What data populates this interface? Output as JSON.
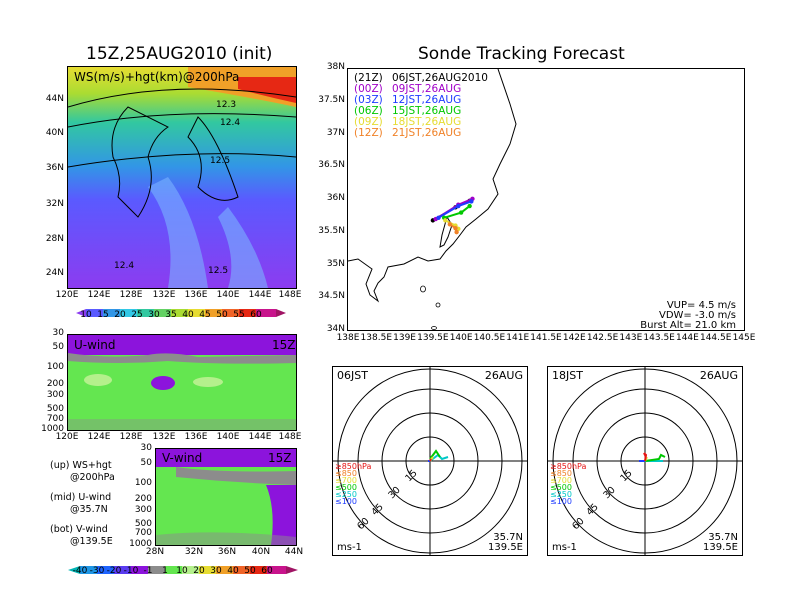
{
  "left_title": "15Z,25AUG2010 (init)",
  "right_title": "Sonde Tracking Forecast",
  "colors": {
    "purple": "#a000c8",
    "blue": "#1e3cff",
    "green": "#00c800",
    "yellow": "#e6dc32",
    "orange": "#f08228",
    "red": "#e61414",
    "cyan": "#00c8c8"
  },
  "top_map": {
    "label": "WS(m/s)+hgt(km)@200hPa",
    "y_ticks": [
      "44N",
      "40N",
      "36N",
      "32N",
      "28N",
      "24N"
    ],
    "x_ticks": [
      "120E",
      "124E",
      "128E",
      "132E",
      "136E",
      "140E",
      "144E",
      "148E"
    ],
    "contour_labels": [
      "12.3",
      "12.4",
      "12.5",
      "12.4",
      "12.5"
    ],
    "colorbar": [
      "10",
      "15",
      "20",
      "25",
      "30",
      "35",
      "40",
      "45",
      "50",
      "55",
      "60"
    ]
  },
  "u_panel": {
    "label": "U-wind",
    "time": "15Z",
    "y_ticks": [
      "30",
      "50",
      "100",
      "200",
      "300",
      "500",
      "700",
      "1000"
    ],
    "x_ticks": [
      "120E",
      "124E",
      "128E",
      "132E",
      "136E",
      "140E",
      "144E",
      "148E"
    ]
  },
  "v_panel": {
    "label": "V-wind",
    "time": "15Z",
    "y_ticks": [
      "30",
      "50",
      "100",
      "200",
      "300",
      "500",
      "700",
      "1000"
    ],
    "x_ticks": [
      "28N",
      "32N",
      "36N",
      "40N",
      "44N"
    ],
    "colorbar": [
      "-40",
      "-30",
      "-20",
      "-10",
      "-1",
      "1",
      "10",
      "20",
      "30",
      "40",
      "50",
      "60"
    ]
  },
  "notes": [
    {
      "head": "(up) WS+hgt",
      "sub": "@200hPa"
    },
    {
      "head": "(mid) U-wind",
      "sub": "@35.7N"
    },
    {
      "head": "(bot) V-wind",
      "sub": "@139.5E"
    }
  ],
  "chart_data": {
    "type": "scatter",
    "xlim": [
      138,
      145
    ],
    "ylim": [
      34,
      38
    ],
    "y_ticks": [
      "38N",
      "37.5N",
      "37N",
      "36.5N",
      "36N",
      "35.5N",
      "35N",
      "34.5N",
      "34N"
    ],
    "x_ticks": [
      "138E",
      "138.5E",
      "139E",
      "139.5E",
      "140E",
      "140.5E",
      "141E",
      "141.5E",
      "142E",
      "142.5E",
      "143E",
      "143.5E",
      "144E",
      "144.5E",
      "145E"
    ],
    "legend": [
      {
        "utc": "(21Z)",
        "jst": "06JST,26AUG2010",
        "color": "#000000"
      },
      {
        "utc": "(00Z)",
        "jst": "09JST,26AUG",
        "color": "#a000c8"
      },
      {
        "utc": "(03Z)",
        "jst": "12JST,26AUG",
        "color": "#1e3cff"
      },
      {
        "utc": "(06Z)",
        "jst": "15JST,26AUG",
        "color": "#00c800"
      },
      {
        "utc": "(09Z)",
        "jst": "18JST,26AUG",
        "color": "#e6dc32"
      },
      {
        "utc": "(12Z)",
        "jst": "21JST,26AUG",
        "color": "#f08228"
      }
    ],
    "series": [
      {
        "color": "#000000",
        "points": [
          [
            139.5,
            35.68
          ],
          [
            139.9,
            35.88
          ],
          [
            140.15,
            35.98
          ]
        ]
      },
      {
        "color": "#a000c8",
        "points": [
          [
            139.55,
            35.7
          ],
          [
            139.95,
            35.92
          ],
          [
            140.2,
            36.01
          ]
        ]
      },
      {
        "color": "#1e3cff",
        "points": [
          [
            139.6,
            35.72
          ],
          [
            139.95,
            35.9
          ],
          [
            140.18,
            35.97
          ]
        ]
      },
      {
        "color": "#00c800",
        "points": [
          [
            139.7,
            35.72
          ],
          [
            140.0,
            35.8
          ],
          [
            140.15,
            35.9
          ]
        ]
      },
      {
        "color": "#e6dc32",
        "points": [
          [
            139.72,
            35.68
          ],
          [
            139.9,
            35.6
          ],
          [
            139.95,
            35.55
          ]
        ]
      },
      {
        "color": "#f08228",
        "points": [
          [
            139.8,
            35.62
          ],
          [
            139.9,
            35.56
          ],
          [
            139.92,
            35.5
          ]
        ]
      }
    ],
    "info": {
      "vup": "VUP= 4.5 m/s",
      "vdw": "VDW= -3.0 m/s",
      "burst": "Burst Alt= 21.0 km"
    }
  },
  "polar_left": {
    "time": "06JST",
    "date": "26AUG",
    "ring_labels": [
      "15",
      "30",
      "45",
      "60"
    ],
    "levels": [
      {
        "text": "≥850hPa",
        "color": "#e61414"
      },
      {
        "text": "≤850",
        "color": "#f08228"
      },
      {
        "text": "≤700",
        "color": "#e6dc32"
      },
      {
        "text": "≤500",
        "color": "#00c800"
      },
      {
        "text": "≤250",
        "color": "#00c8c8"
      },
      {
        "text": "≤100",
        "color": "#1e3cff"
      }
    ],
    "unit": "ms-1",
    "lat": "35.7N",
    "lon": "139.5E"
  },
  "polar_right": {
    "time": "18JST",
    "date": "26AUG",
    "ring_labels": [
      "15",
      "30",
      "45",
      "60"
    ],
    "levels": [
      {
        "text": "≥850hPa",
        "color": "#e61414"
      },
      {
        "text": "≤850",
        "color": "#f08228"
      },
      {
        "text": "≤700",
        "color": "#e6dc32"
      },
      {
        "text": "≤500",
        "color": "#00c800"
      },
      {
        "text": "≤250",
        "color": "#00c8c8"
      },
      {
        "text": "≤100",
        "color": "#1e3cff"
      }
    ],
    "unit": "ms-1",
    "lat": "35.7N",
    "lon": "139.5E"
  }
}
